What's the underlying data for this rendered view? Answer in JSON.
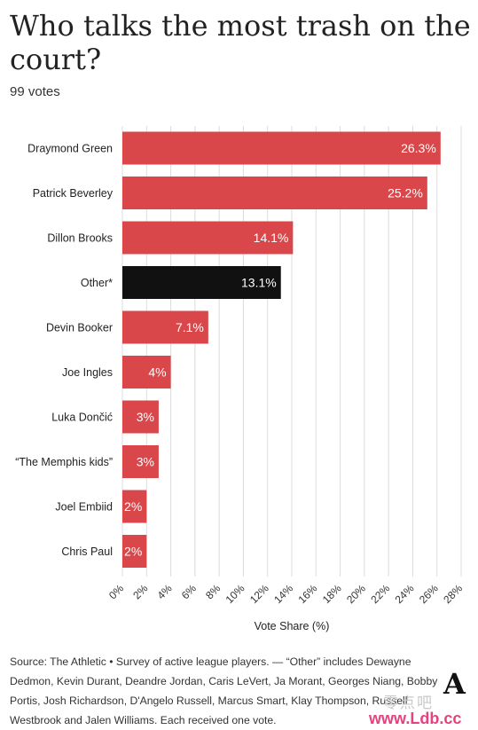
{
  "header": {
    "title": "Who talks the most trash on the court?",
    "subtitle": "99 votes"
  },
  "chart_data": {
    "type": "bar",
    "orientation": "horizontal",
    "categories": [
      "Draymond Green",
      "Patrick Beverley",
      "Dillon Brooks",
      "Other*",
      "Devin Booker",
      "Joe Ingles",
      "Luka Dončić",
      "“The Memphis kids”",
      "Joel Embiid",
      "Chris Paul"
    ],
    "values": [
      26.3,
      25.2,
      14.1,
      13.1,
      7.1,
      4,
      3,
      3,
      2,
      2
    ],
    "data_labels": [
      "26.3%",
      "25.2%",
      "14.1%",
      "13.1%",
      "7.1%",
      "4%",
      "3%",
      "3%",
      "2%",
      "2%"
    ],
    "highlight": [
      false,
      false,
      false,
      true,
      false,
      false,
      false,
      false,
      false,
      false
    ],
    "xlabel": "Vote Share (%)",
    "xlim": [
      0,
      28
    ],
    "x_ticks": [
      0,
      2,
      4,
      6,
      8,
      10,
      12,
      14,
      16,
      18,
      20,
      22,
      24,
      26,
      28
    ],
    "x_tick_labels": [
      "0%",
      "2%",
      "4%",
      "6%",
      "8%",
      "10%",
      "12%",
      "14%",
      "16%",
      "18%",
      "20%",
      "22%",
      "24%",
      "26%",
      "28%"
    ],
    "grid": true,
    "colors": {
      "bar": "#d9474b",
      "highlight": "#111111",
      "label": "#ffffff",
      "grid": "#dcdcdc"
    }
  },
  "footnote": "Source: The Athletic • Survey of active league players. — “Other” includes Dewayne Dedmon, Kevin Durant, Deandre Jordan, Caris LeVert, Ja Morant, Georges Niang, Bobby Portis, Josh Richardson, D'Angelo Russell, Marcus Smart, Klay Thompson, Russell Westbrook and Jalen Williams. Each received one vote.",
  "brand": {
    "logo": "A"
  },
  "watermark": {
    "text": "零点吧",
    "url": "www.Ldb.cc"
  }
}
